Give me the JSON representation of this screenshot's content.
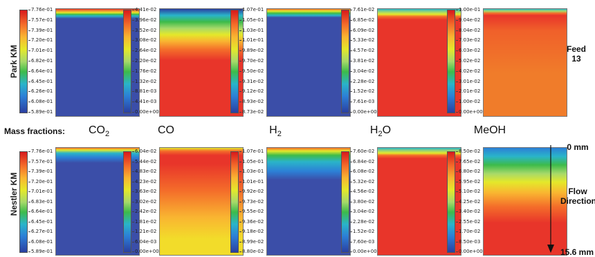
{
  "rows": {
    "top": "Park KM",
    "bottom": "Nestler KM"
  },
  "mass_fractions_label": "Mass fractions:",
  "species": [
    {
      "base": "CO",
      "sub": "2"
    },
    {
      "base": "CO",
      "sub": ""
    },
    {
      "base": "H",
      "sub": "2"
    },
    {
      "base": "H",
      "sub": "2",
      "tail": "O"
    },
    {
      "base": "MeOH",
      "sub": ""
    }
  ],
  "side": {
    "feed": "Feed",
    "feed_num": "13",
    "top_mm": "0 mm",
    "flow": "Flow",
    "direction": "Direction",
    "bottom_mm": "15.6 mm"
  },
  "top_scales": [
    [
      "7.76e-01",
      "7.57e-01",
      "7.39e-01",
      "7.20e-01",
      "7.01e-01",
      "6.82e-01",
      "6.64e-01",
      "6.45e-01",
      "6.26e-01",
      "6.08e-01",
      "5.89e-01"
    ],
    [
      "4.41e-02",
      "3.96e-02",
      "3.52e-02",
      "3.08e-02",
      "2.64e-02",
      "2.20e-02",
      "1.76e-02",
      "1.32e-02",
      "8.81e-03",
      "4.41e-03",
      "0.00e+00"
    ],
    [
      "1.07e-01",
      "1.05e-01",
      "1.03e-01",
      "1.01e-01",
      "9.89e-02",
      "9.70e-02",
      "9.50e-02",
      "9.31e-02",
      "9.12e-02",
      "8.93e-02",
      "8.73e-02"
    ],
    [
      "7.61e-02",
      "6.85e-02",
      "6.09e-02",
      "5.33e-02",
      "4.57e-02",
      "3.81e-02",
      "3.04e-02",
      "2.28e-02",
      "1.52e-02",
      "7.61e-03",
      "0.00e+00"
    ],
    [
      "1.00e-01",
      "9.04e-02",
      "8.04e-02",
      "7.03e-02",
      "6.03e-02",
      "5.02e-02",
      "4.02e-02",
      "3.01e-02",
      "2.01e-02",
      "1.00e-02",
      "0.00e+00"
    ]
  ],
  "bottom_scales": [
    [
      "7.76e-01",
      "7.57e-01",
      "7.39e-01",
      "7.20e-01",
      "7.01e-01",
      "6.83e-01",
      "6.64e-01",
      "6.45e-01",
      "6.27e-01",
      "6.08e-01",
      "5.89e-01"
    ],
    [
      "6.04e-02",
      "5.44e-02",
      "4.83e-02",
      "4.23e-02",
      "3.63e-02",
      "3.02e-02",
      "2.42e-02",
      "1.81e-02",
      "1.21e-02",
      "6.04e-03",
      "0.00e+00"
    ],
    [
      "1.07e-01",
      "1.05e-01",
      "1.03e-01",
      "1.01e-01",
      "9.92e-02",
      "9.73e-02",
      "9.55e-02",
      "9.36e-02",
      "9.18e-02",
      "8.99e-02",
      "8.80e-02"
    ],
    [
      "7.60e-02",
      "6.84e-02",
      "6.08e-02",
      "5.32e-02",
      "4.56e-02",
      "3.80e-02",
      "3.04e-02",
      "2.28e-02",
      "1.52e-02",
      "7.60e-03",
      "0.00e+00"
    ],
    [
      "8.50e-02",
      "7.65e-02",
      "6.80e-02",
      "5.95e-02",
      "5.10e-02",
      "4.25e-02",
      "3.40e-02",
      "2.55e-02",
      "1.70e-02",
      "8.50e-03",
      "0.00e+00"
    ]
  ],
  "colors": {
    "rainbow_top": "#d7191c",
    "rainbow_bottom": "#2b3fa0",
    "blue_field": "#3b4ea8",
    "red_field": "#e8352a",
    "orange_field": "#f07c2a",
    "yellow_field": "#f2dc2a"
  }
}
